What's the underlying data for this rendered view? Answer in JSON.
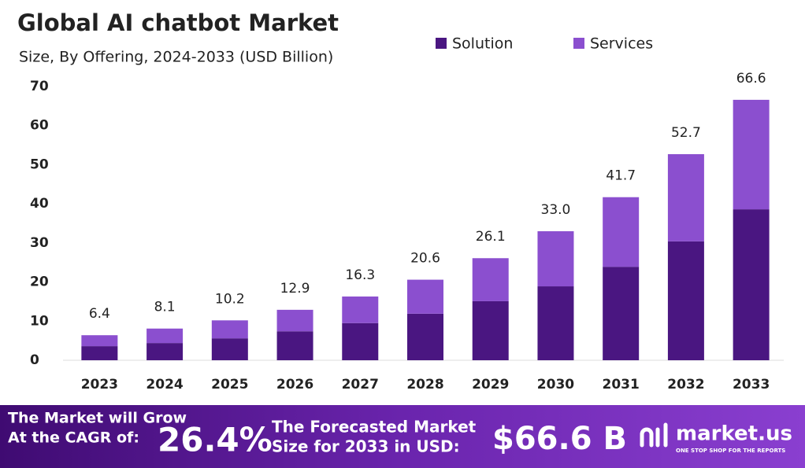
{
  "chart_data": {
    "type": "stacked_bar",
    "title": "Global AI chatbot Market",
    "subtitle": "Size, By Offering, 2024-2033 (USD Billion)",
    "categories": [
      "2023",
      "2024",
      "2025",
      "2026",
      "2027",
      "2028",
      "2029",
      "2030",
      "2031",
      "2032",
      "2033"
    ],
    "series": [
      {
        "name": "Solution",
        "color": "#4a1681",
        "values": [
          3.6,
          4.4,
          5.6,
          7.4,
          9.5,
          11.9,
          15.1,
          18.9,
          23.9,
          30.4,
          38.6
        ]
      },
      {
        "name": "Services",
        "color": "#8b4fcf",
        "values": [
          2.8,
          3.7,
          4.6,
          5.5,
          6.8,
          8.7,
          11.0,
          14.1,
          17.8,
          22.3,
          28.0
        ]
      }
    ],
    "totals": [
      6.4,
      8.1,
      10.2,
      12.9,
      16.3,
      20.6,
      26.1,
      33.0,
      41.7,
      52.7,
      66.6
    ],
    "total_labels": [
      "6.4",
      "8.1",
      "10.2",
      "12.9",
      "16.3",
      "20.6",
      "26.1",
      "33.0",
      "41.7",
      "52.7",
      "66.6"
    ],
    "ylim": [
      0,
      70
    ],
    "yticks": [
      0,
      10,
      20,
      30,
      40,
      50,
      60,
      70
    ],
    "grid": false,
    "legend": "top-right"
  },
  "banner": {
    "cagr_text": [
      "The Market will Grow",
      "At the CAGR of:"
    ],
    "cagr": "26.4%",
    "forecast_text": [
      "The Forecasted Market",
      "Size for 2033 in USD:"
    ],
    "forecast": "$66.6 B",
    "brand": "market.us",
    "tagline": "ONE STOP SHOP FOR THE REPORTS"
  }
}
